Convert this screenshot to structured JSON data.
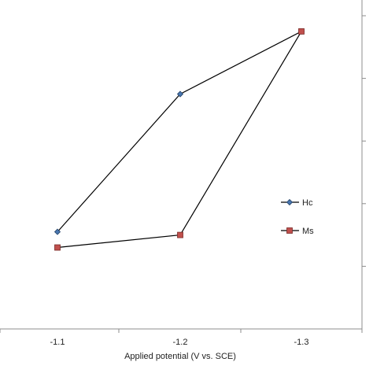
{
  "chart_data": {
    "type": "line",
    "xlabel": "Applied potential (V vs. SCE)",
    "ylabel": "",
    "x": [
      "-1.1",
      "-1.2",
      "-1.3"
    ],
    "ylim": [
      0,
      100
    ],
    "right_axis_ticks": [
      20,
      40,
      60,
      80,
      100
    ],
    "grid": false,
    "legend": "right",
    "series": [
      {
        "name": "Hc",
        "values": [
          31,
          75,
          95
        ],
        "marker": "diamond",
        "color": "#4a77b0"
      },
      {
        "name": "Ms",
        "values": [
          26,
          30,
          95
        ],
        "marker": "square",
        "color": "#c0504d"
      }
    ],
    "line_color": "#000000"
  }
}
